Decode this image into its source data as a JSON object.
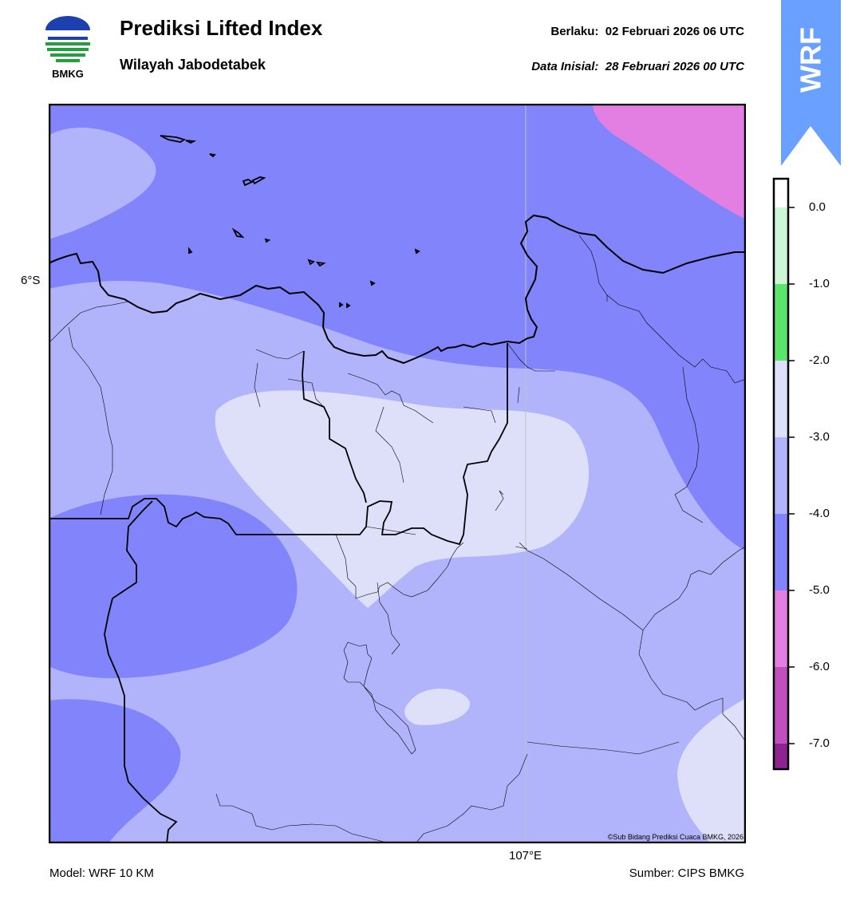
{
  "header": {
    "logo_text": "BMKG",
    "title": "Prediksi Lifted Index",
    "subtitle": "Wilayah Jabodetabek",
    "valid_label": "Berlaku:",
    "valid_time": "02 Februari 2026 06 UTC",
    "init_label": "Data Inisial:",
    "init_time": "28 Februari 2026 00 UTC"
  },
  "badge": {
    "text": "WRF",
    "color": "#6aa0ff"
  },
  "map": {
    "lat_label": "6°S",
    "lon_label": "107°E",
    "credit": "©Sub Bidang Prediksi Cuaca BMKG, 2026"
  },
  "footer": {
    "model": "Model: WRF 10 KM",
    "source": "Sumber: CIPS BMKG"
  },
  "colorbar": {
    "tick_labels": [
      "0.0",
      "-1.0",
      "-2.0",
      "-3.0",
      "-4.0",
      "-5.0",
      "-6.0",
      "-7.0"
    ],
    "levels": [
      {
        "range": "0 to -1",
        "color": "#cbf7d7"
      },
      {
        "range": "-1 to -2",
        "color": "#5be56d"
      },
      {
        "range": "-2 to -3",
        "color": "#dedff9"
      },
      {
        "range": "-3 to -4",
        "color": "#b2b4fb"
      },
      {
        "range": "-4 to -5",
        "color": "#8184fa"
      },
      {
        "range": "-5 to -6",
        "color": "#e37fe2"
      },
      {
        "range": "-6 to -7",
        "color": "#c24fbf"
      },
      {
        "range": "< -7",
        "color": "#8e2393"
      }
    ]
  }
}
